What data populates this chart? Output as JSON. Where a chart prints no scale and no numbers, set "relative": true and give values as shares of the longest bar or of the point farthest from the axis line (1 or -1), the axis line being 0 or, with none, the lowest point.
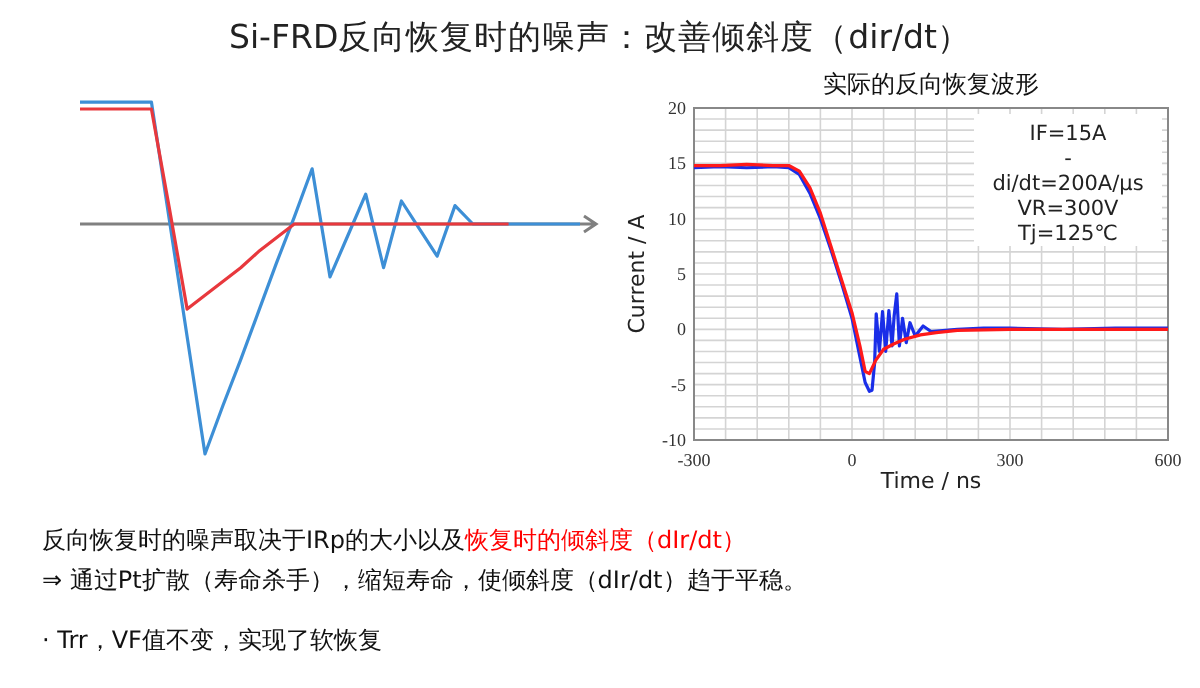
{
  "chart_data": [
    {
      "type": "line",
      "relative": true,
      "title": "Si-FRD反向恢复时的噪声：改善倾斜度（dir/dt）",
      "categories": [
        null,
        null,
        null,
        null,
        null,
        null,
        null,
        null,
        null,
        null,
        null,
        null,
        null,
        null,
        null,
        null,
        null,
        null,
        null,
        null,
        null,
        null,
        null,
        null,
        null,
        null,
        null,
        null,
        null
      ],
      "series": [
        {
          "color": "#3d8fd6",
          "values": [
            0.53,
            0.53,
            0.53,
            0.53,
            0.53,
            0.02,
            -0.49,
            -1,
            -0.79,
            -0.59,
            -0.38,
            -0.17,
            0.03,
            0.24,
            -0.23,
            -0.05,
            0.13,
            -0.19,
            0.1,
            -0.02,
            -0.14,
            0.08,
            0,
            0,
            0,
            0,
            0,
            0,
            0
          ]
        },
        {
          "color": "#e8383d",
          "values": [
            0.5,
            0.5,
            0.5,
            0.5,
            0.5,
            0.07,
            -0.37,
            -0.31,
            -0.25,
            -0.19,
            -0.12,
            -0.06,
            0,
            0,
            0,
            0,
            0,
            0,
            0,
            0,
            0,
            0,
            0,
            0,
            0,
            null,
            null,
            null,
            null
          ]
        }
      ],
      "annotations": [
        "反向恢复时的噪声取决于IRp的大小以及",
        "恢复时的倾斜度（dIr/dt）",
        "⇒ 通过Pt扩散（寿命杀手），缩短寿命，使倾斜度（dIr/dt）趋于平稳。",
        "· Trr，VF值不变，实现了软恢复"
      ]
    },
    {
      "type": "line",
      "title": "实际的反向恢复波形",
      "xlabel": "Time / ns",
      "ylabel": "Current / A",
      "xlim": [
        -300,
        600
      ],
      "ylim": [
        -10,
        20
      ],
      "grid": true,
      "xticks": [
        -300,
        {
          "value": -240,
          "label": null
        },
        {
          "value": -180,
          "label": null
        },
        {
          "value": -120,
          "label": null
        },
        {
          "value": -60,
          "label": null
        },
        0,
        {
          "value": 60,
          "label": null
        },
        {
          "value": 120,
          "label": null
        },
        {
          "value": 180,
          "label": null
        },
        {
          "value": 240,
          "label": null
        },
        300,
        {
          "value": 360,
          "label": null
        },
        {
          "value": 420,
          "label": null
        },
        {
          "value": 480,
          "label": null
        },
        {
          "value": 540,
          "label": null
        },
        600
      ],
      "yticks": [
        -10,
        {
          "value": -9,
          "label": null
        },
        {
          "value": -8,
          "label": null
        },
        {
          "value": -7,
          "label": null
        },
        {
          "value": -6,
          "label": null
        },
        -5,
        {
          "value": -4,
          "label": null
        },
        {
          "value": -3,
          "label": null
        },
        {
          "value": -2,
          "label": null
        },
        {
          "value": -1,
          "label": null
        },
        0,
        {
          "value": 1,
          "label": null
        },
        {
          "value": 2,
          "label": null
        },
        {
          "value": 3,
          "label": null
        },
        {
          "value": 4,
          "label": null
        },
        5,
        {
          "value": 6,
          "label": null
        },
        {
          "value": 7,
          "label": null
        },
        {
          "value": 8,
          "label": null
        },
        {
          "value": 9,
          "label": null
        },
        10,
        {
          "value": 11,
          "label": null
        },
        {
          "value": 12,
          "label": null
        },
        {
          "value": 13,
          "label": null
        },
        {
          "value": 14,
          "label": null
        },
        15,
        {
          "value": 16,
          "label": null
        },
        {
          "value": 17,
          "label": null
        },
        {
          "value": 18,
          "label": null
        },
        {
          "value": 19,
          "label": null
        },
        20
      ],
      "series": [
        {
          "color": "#1a2ee8",
          "x": [
            -300,
            -250,
            -200,
            -150,
            -120,
            -100,
            -80,
            -60,
            -40,
            -20,
            0,
            15,
            25,
            33,
            38,
            43,
            46,
            52,
            58,
            64,
            70,
            76,
            80,
            85,
            90,
            96,
            103,
            110,
            120,
            135,
            150,
            200,
            250,
            300,
            400,
            500,
            600
          ],
          "values": [
            14.6,
            14.7,
            14.6,
            14.7,
            14.6,
            14.0,
            12.3,
            10.0,
            7.2,
            4.2,
            1.0,
            -2.5,
            -4.8,
            -5.6,
            -5.5,
            -3,
            1.4,
            -2,
            1.6,
            -2,
            1.7,
            -1.5,
            1.2,
            3.2,
            -1.5,
            1,
            -1.2,
            0.6,
            -0.6,
            0.3,
            -0.2,
            0,
            0.1,
            0.1,
            0,
            0.1,
            0.1
          ]
        },
        {
          "color": "#ff1a1a",
          "x": [
            -300,
            -250,
            -200,
            -150,
            -120,
            -100,
            -80,
            -60,
            -40,
            -20,
            0,
            15,
            25,
            33,
            45,
            60,
            80,
            100,
            130,
            160,
            200,
            300,
            400,
            500,
            600
          ],
          "values": [
            14.8,
            14.8,
            14.9,
            14.8,
            14.8,
            14.3,
            12.8,
            10.5,
            7.5,
            4.5,
            1.5,
            -1.5,
            -3.8,
            -4.0,
            -2.8,
            -1.8,
            -1.3,
            -0.9,
            -0.5,
            -0.3,
            -0.1,
            0,
            0,
            0,
            0
          ]
        }
      ],
      "annotations": [
        "IF=15A",
        "-",
        "di/dt=200A/μs",
        "VR=300V",
        "Tj=125℃"
      ]
    }
  ]
}
